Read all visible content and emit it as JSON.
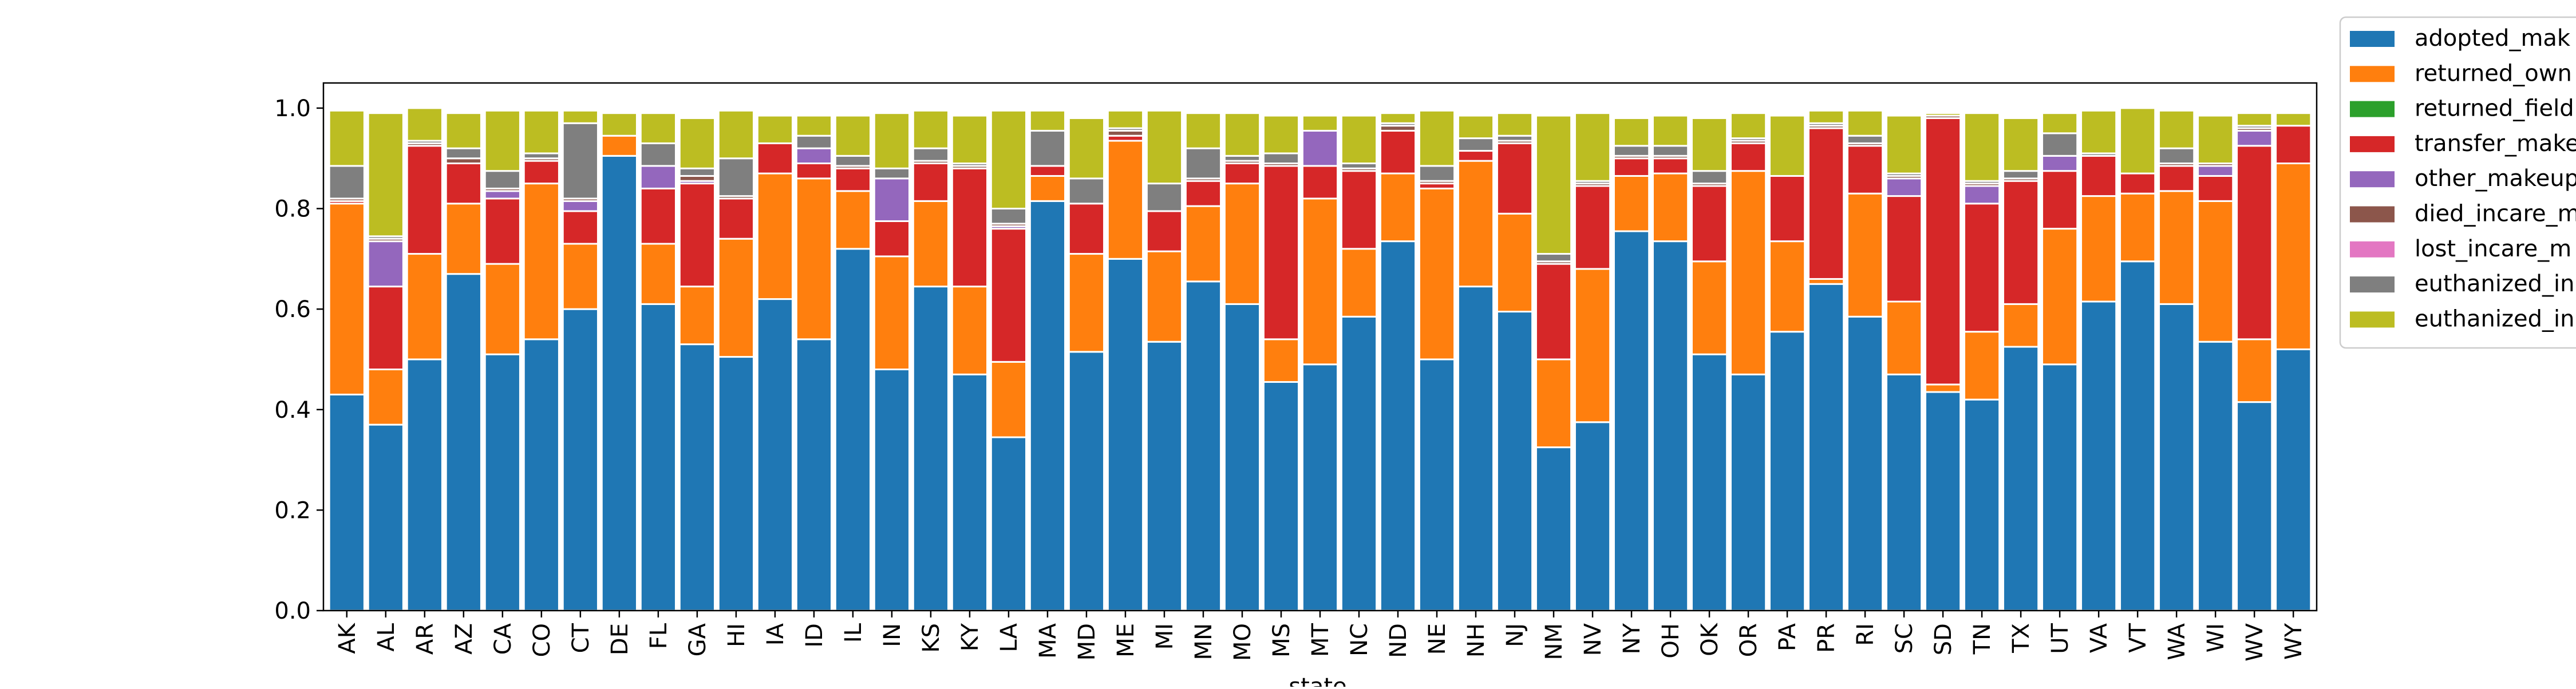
{
  "chart_data": {
    "type": "bar",
    "stacked": true,
    "xlabel": "state",
    "ylabel": "",
    "ylim": [
      0,
      1.05
    ],
    "yticks": [
      0.0,
      0.2,
      0.4,
      0.6,
      0.8,
      1.0
    ],
    "ytick_labels": [
      "0.0",
      "0.2",
      "0.4",
      "0.6",
      "0.8",
      "1.0"
    ],
    "grid": false,
    "legend_position": "outside-right-top",
    "categories": [
      "AK",
      "AL",
      "AR",
      "AZ",
      "CA",
      "CO",
      "CT",
      "DE",
      "FL",
      "GA",
      "HI",
      "IA",
      "ID",
      "IL",
      "IN",
      "KS",
      "KY",
      "LA",
      "MA",
      "MD",
      "ME",
      "MI",
      "MN",
      "MO",
      "MS",
      "MT",
      "NC",
      "ND",
      "NE",
      "NH",
      "NJ",
      "NM",
      "NV",
      "NY",
      "OH",
      "OK",
      "OR",
      "PA",
      "PR",
      "RI",
      "SC",
      "SD",
      "TN",
      "TX",
      "UT",
      "VA",
      "VT",
      "WA",
      "WI",
      "WV",
      "WY"
    ],
    "series": [
      {
        "name": "adopted_mak",
        "color": "#1f77b4",
        "values": [
          0.43,
          0.37,
          0.5,
          0.67,
          0.51,
          0.54,
          0.6,
          0.905,
          0.61,
          0.53,
          0.505,
          0.62,
          0.54,
          0.72,
          0.48,
          0.645,
          0.47,
          0.345,
          0.815,
          0.515,
          0.7,
          0.535,
          0.655,
          0.61,
          0.455,
          0.49,
          0.585,
          0.735,
          0.5,
          0.645,
          0.595,
          0.325,
          0.375,
          0.755,
          0.735,
          0.51,
          0.47,
          0.555,
          0.65,
          0.585,
          0.47,
          0.435,
          0.42,
          0.525,
          0.49,
          0.615,
          0.695,
          0.61,
          0.535,
          0.415,
          0.52
        ]
      },
      {
        "name": "returned_own",
        "color": "#ff7f0e",
        "values": [
          0.38,
          0.11,
          0.21,
          0.14,
          0.18,
          0.31,
          0.13,
          0.04,
          0.12,
          0.115,
          0.235,
          0.25,
          0.32,
          0.115,
          0.225,
          0.17,
          0.175,
          0.15,
          0.05,
          0.195,
          0.235,
          0.18,
          0.15,
          0.24,
          0.085,
          0.33,
          0.135,
          0.135,
          0.34,
          0.25,
          0.195,
          0.175,
          0.305,
          0.11,
          0.135,
          0.185,
          0.405,
          0.18,
          0.01,
          0.245,
          0.145,
          0.015,
          0.135,
          0.085,
          0.27,
          0.21,
          0.135,
          0.225,
          0.28,
          0.125,
          0.37
        ]
      },
      {
        "name": "returned_field",
        "color": "#2ca02c",
        "values": [
          0,
          0,
          0,
          0,
          0,
          0,
          0,
          0,
          0,
          0,
          0,
          0,
          0,
          0,
          0,
          0,
          0,
          0,
          0,
          0,
          0,
          0,
          0,
          0,
          0,
          0,
          0,
          0,
          0,
          0,
          0,
          0,
          0,
          0,
          0,
          0,
          0,
          0,
          0,
          0,
          0,
          0,
          0,
          0,
          0,
          0,
          0,
          0,
          0,
          0,
          0
        ]
      },
      {
        "name": "transfer_make",
        "color": "#d62728",
        "values": [
          0.005,
          0.165,
          0.215,
          0.08,
          0.13,
          0.045,
          0.065,
          0,
          0.11,
          0.205,
          0.08,
          0.06,
          0.03,
          0.045,
          0.07,
          0.075,
          0.235,
          0.265,
          0.02,
          0.1,
          0.01,
          0.08,
          0.05,
          0.04,
          0.345,
          0.065,
          0.155,
          0.085,
          0.01,
          0.02,
          0.14,
          0.19,
          0.165,
          0.035,
          0.03,
          0.15,
          0.055,
          0.13,
          0.3,
          0.095,
          0.21,
          0.53,
          0.255,
          0.245,
          0.115,
          0.08,
          0.04,
          0.05,
          0.05,
          0.385,
          0.075
        ]
      },
      {
        "name": "other_makeup",
        "color": "#9467bd",
        "values": [
          0,
          0.09,
          0,
          0,
          0.015,
          0,
          0.02,
          0,
          0.045,
          0.005,
          0,
          0,
          0.03,
          0,
          0.085,
          0,
          0,
          0.005,
          0,
          0,
          0,
          0,
          0,
          0,
          0,
          0.07,
          0,
          0,
          0,
          0,
          0,
          0,
          0,
          0,
          0,
          0,
          0,
          0,
          0,
          0,
          0.035,
          0,
          0.035,
          0,
          0.03,
          0,
          0,
          0,
          0.02,
          0.03,
          0
        ]
      },
      {
        "name": "died_incare_m",
        "color": "#8c564b",
        "values": [
          0.005,
          0.005,
          0.005,
          0.01,
          0.005,
          0.005,
          0.005,
          0,
          0,
          0.01,
          0.005,
          0,
          0,
          0.005,
          0,
          0.005,
          0.005,
          0.005,
          0,
          0,
          0.01,
          0,
          0.005,
          0.005,
          0.005,
          0,
          0.005,
          0.01,
          0.005,
          0,
          0.005,
          0.005,
          0.005,
          0.005,
          0.005,
          0.005,
          0.005,
          0,
          0.005,
          0.005,
          0.005,
          0.005,
          0.005,
          0.005,
          0,
          0,
          0,
          0.005,
          0.005,
          0.005,
          0
        ]
      },
      {
        "name": "lost_incare_m",
        "color": "#e377c2",
        "values": [
          0,
          0,
          0,
          0,
          0,
          0,
          0,
          0,
          0,
          0,
          0,
          0,
          0,
          0,
          0,
          0,
          0,
          0,
          0,
          0,
          0,
          0,
          0,
          0,
          0,
          0,
          0,
          0,
          0,
          0,
          0,
          0,
          0,
          0,
          0,
          0,
          0,
          0,
          0,
          0,
          0,
          0,
          0,
          0,
          0,
          0,
          0,
          0,
          0,
          0,
          0
        ]
      },
      {
        "name": "euthanized_in",
        "color": "#7f7f7f",
        "values": [
          0.065,
          0.005,
          0.005,
          0.02,
          0.035,
          0.01,
          0.15,
          0,
          0.045,
          0.015,
          0.075,
          0,
          0.025,
          0.02,
          0.02,
          0.025,
          0.005,
          0.03,
          0.07,
          0.05,
          0.005,
          0.055,
          0.06,
          0.01,
          0.02,
          0,
          0.01,
          0.005,
          0.03,
          0.025,
          0.01,
          0.015,
          0.005,
          0.02,
          0.02,
          0.025,
          0.005,
          0,
          0.005,
          0.015,
          0.005,
          0,
          0.005,
          0.015,
          0.045,
          0.005,
          0,
          0.03,
          0,
          0.005,
          0
        ]
      },
      {
        "name": "euthanized_in",
        "color": "#bcbd22",
        "values": [
          0.11,
          0.245,
          0.065,
          0.07,
          0.12,
          0.085,
          0.025,
          0.045,
          0.06,
          0.1,
          0.095,
          0.055,
          0.04,
          0.08,
          0.11,
          0.075,
          0.095,
          0.195,
          0.04,
          0.12,
          0.035,
          0.145,
          0.07,
          0.085,
          0.075,
          0.03,
          0.095,
          0.02,
          0.11,
          0.045,
          0.045,
          0.275,
          0.135,
          0.055,
          0.06,
          0.105,
          0.05,
          0.12,
          0.025,
          0.05,
          0.115,
          0.005,
          0.135,
          0.105,
          0.04,
          0.085,
          0.13,
          0.075,
          0.095,
          0.025,
          0.025
        ]
      }
    ]
  }
}
